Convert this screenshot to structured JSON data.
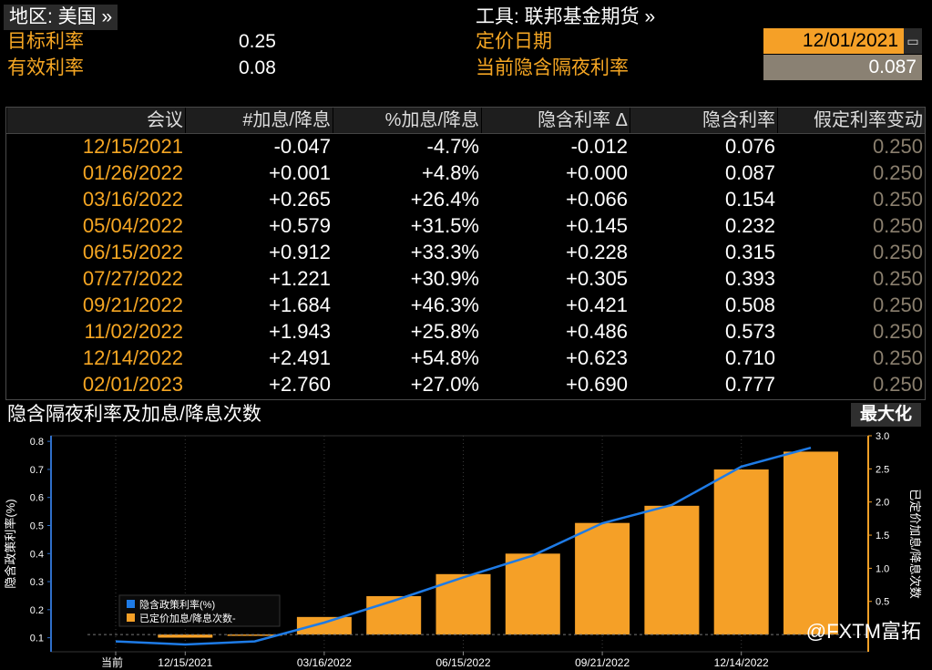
{
  "header": {
    "region_label": "地区: 美国 »",
    "tool_label": "工具: 联邦基金期货 »",
    "target_rate_label": "目标利率",
    "target_rate_value": "0.25",
    "effective_rate_label": "有效利率",
    "effective_rate_value": "0.08",
    "pricing_date_label": "定价日期",
    "pricing_date_value": "12/01/2021",
    "implied_overnight_label": "当前隐含隔夜利率",
    "implied_overnight_value": "0.087"
  },
  "table": {
    "columns": [
      "会议",
      "#加息/降息",
      "%加息/降息",
      "隐含利率 Δ",
      "隐含利率",
      "假定利率变动"
    ],
    "rows": [
      [
        "12/15/2021",
        "-0.047",
        "-4.7%",
        "-0.012",
        "0.076",
        "0.250"
      ],
      [
        "01/26/2022",
        "+0.001",
        "+4.8%",
        "+0.000",
        "0.087",
        "0.250"
      ],
      [
        "03/16/2022",
        "+0.265",
        "+26.4%",
        "+0.066",
        "0.154",
        "0.250"
      ],
      [
        "05/04/2022",
        "+0.579",
        "+31.5%",
        "+0.145",
        "0.232",
        "0.250"
      ],
      [
        "06/15/2022",
        "+0.912",
        "+33.3%",
        "+0.228",
        "0.315",
        "0.250"
      ],
      [
        "07/27/2022",
        "+1.221",
        "+30.9%",
        "+0.305",
        "0.393",
        "0.250"
      ],
      [
        "09/21/2022",
        "+1.684",
        "+46.3%",
        "+0.421",
        "0.508",
        "0.250"
      ],
      [
        "11/02/2022",
        "+1.943",
        "+25.8%",
        "+0.486",
        "0.573",
        "0.250"
      ],
      [
        "12/14/2022",
        "+2.491",
        "+54.8%",
        "+0.623",
        "0.710",
        "0.250"
      ],
      [
        "02/01/2023",
        "+2.760",
        "+27.0%",
        "+0.690",
        "0.777",
        "0.250"
      ]
    ]
  },
  "chart_header": {
    "title": "隐含隔夜利率及加息/降息次数",
    "maximize_label": "最大化"
  },
  "chart_data": {
    "type": "bar",
    "x_tick_labels": [
      "当前",
      "12/15/2021",
      "03/16/2022",
      "06/15/2022",
      "09/21/2022",
      "12/14/2022"
    ],
    "categories": [
      "当前",
      "12/15/2021",
      "01/26/2022",
      "03/16/2022",
      "05/04/2022",
      "06/15/2022",
      "07/27/2022",
      "09/21/2022",
      "11/02/2022",
      "12/14/2022",
      "02/01/2023"
    ],
    "ylabel_left": "隐含政策利率(%)",
    "ylabel_right": "已定价加息/降息次数",
    "y_left_ticks": [
      "0.1",
      "0.2",
      "0.3",
      "0.4",
      "0.5",
      "0.6",
      "0.7",
      "0.8"
    ],
    "y_right_ticks": [
      "0.5",
      "1.0",
      "1.5",
      "2.0",
      "2.5",
      "3.0"
    ],
    "ylim_left": [
      0.05,
      0.82
    ],
    "ylim_right": [
      -0.26,
      3.0
    ],
    "series": [
      {
        "name": "隐含政策利率(%)",
        "kind": "line",
        "axis": "left",
        "color": "#1e7be6",
        "values": [
          0.087,
          0.076,
          0.087,
          0.154,
          0.232,
          0.315,
          0.393,
          0.508,
          0.573,
          0.71,
          0.777
        ]
      },
      {
        "name": "已定价加息/降息次数",
        "kind": "bar",
        "axis": "right",
        "color": "#f5a027",
        "values": [
          null,
          -0.047,
          0.001,
          0.265,
          0.579,
          0.912,
          1.221,
          1.684,
          1.943,
          2.491,
          2.76
        ]
      }
    ],
    "legend": [
      "隐含政策利率(%)",
      "已定价加息/降息次数-"
    ],
    "legend_position": "bottom-left"
  },
  "watermark": "@FXTM富拓",
  "colors": {
    "accent": "#f5a623",
    "bar": "#f5a027",
    "line": "#1e7be6",
    "muted": "#8a7f6e"
  }
}
